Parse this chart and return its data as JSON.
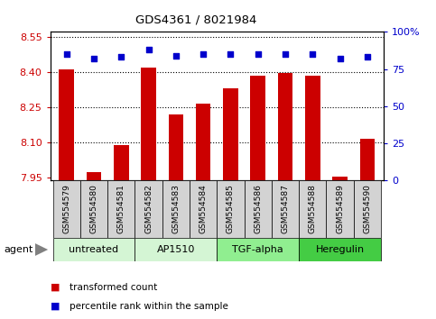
{
  "title": "GDS4361 / 8021984",
  "samples": [
    "GSM554579",
    "GSM554580",
    "GSM554581",
    "GSM554582",
    "GSM554583",
    "GSM554584",
    "GSM554585",
    "GSM554586",
    "GSM554587",
    "GSM554588",
    "GSM554589",
    "GSM554590"
  ],
  "bar_values": [
    8.41,
    7.975,
    8.09,
    8.42,
    8.22,
    8.265,
    8.33,
    8.385,
    8.395,
    8.385,
    7.955,
    8.115
  ],
  "percentile_values": [
    85,
    82,
    83,
    88,
    84,
    85,
    85,
    85,
    85,
    85,
    82,
    83
  ],
  "bar_color": "#cc0000",
  "dot_color": "#0000cc",
  "ylim_left": [
    7.94,
    8.57
  ],
  "ylim_right": [
    0,
    100
  ],
  "yticks_left": [
    7.95,
    8.1,
    8.25,
    8.4,
    8.55
  ],
  "yticks_right": [
    0,
    25,
    50,
    75,
    100
  ],
  "gridlines": [
    8.1,
    8.25,
    8.4,
    8.55
  ],
  "groups": [
    {
      "label": "untreated",
      "start": 0,
      "end": 2,
      "color": "#d4f5d4"
    },
    {
      "label": "AP1510",
      "start": 3,
      "end": 5,
      "color": "#d4f5d4"
    },
    {
      "label": "TGF-alpha",
      "start": 6,
      "end": 8,
      "color": "#90ee90"
    },
    {
      "label": "Heregulin",
      "start": 9,
      "end": 11,
      "color": "#44cc44"
    }
  ],
  "legend_bar_label": "transformed count",
  "legend_dot_label": "percentile rank within the sample",
  "agent_label": "agent",
  "bar_bottom": 7.94,
  "xlabel_color": "#c0c0c0",
  "tick_label_fontsize": 7,
  "bar_width": 0.55
}
